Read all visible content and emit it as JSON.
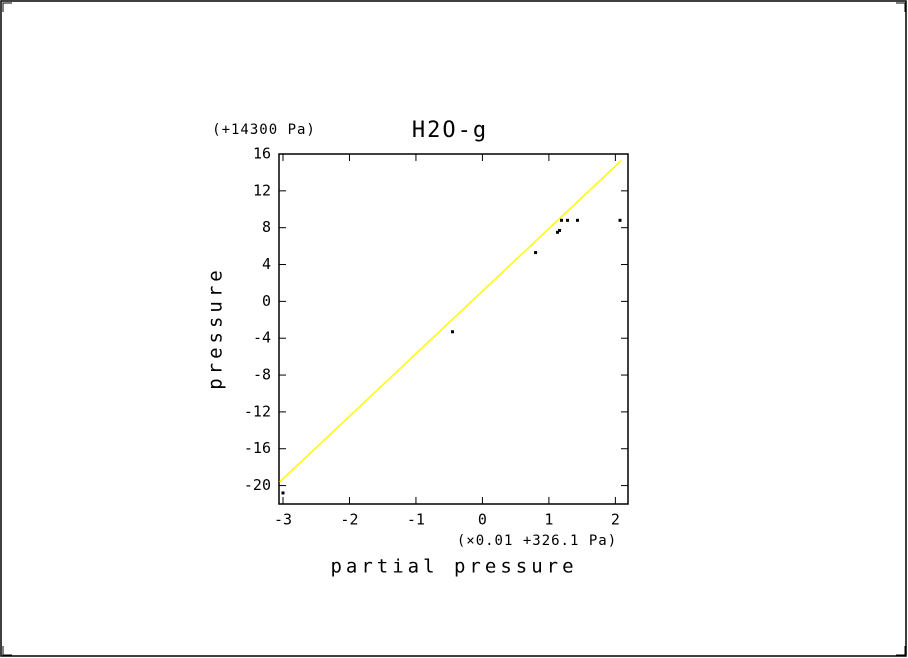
{
  "chart_data": {
    "type": "scatter",
    "title": "H2O-g",
    "x_label": "partial pressure",
    "y_label": "pressure",
    "x_offset_label": "(×0.01 +326.1 Pa)",
    "y_offset_label": "(+14300 Pa)",
    "xlim": [
      -3.06,
      2.19
    ],
    "ylim": [
      -22,
      16
    ],
    "xticks": [
      -3,
      -2,
      -1,
      0,
      1,
      2
    ],
    "yticks": [
      16,
      12,
      8,
      4,
      0,
      -4,
      -8,
      -12,
      -16,
      -20
    ],
    "points": {
      "color": "#000000",
      "x": [
        -3.0,
        -0.45,
        0.8,
        1.13,
        1.16,
        1.19,
        1.28,
        1.43,
        2.07
      ],
      "y": [
        -20.8,
        -3.3,
        5.3,
        7.5,
        7.7,
        8.8,
        8.8,
        8.8,
        8.8
      ]
    },
    "line": {
      "color": "#ffff00",
      "x": [
        -3.05,
        2.09
      ],
      "y": [
        -19.6,
        15.3
      ]
    }
  }
}
